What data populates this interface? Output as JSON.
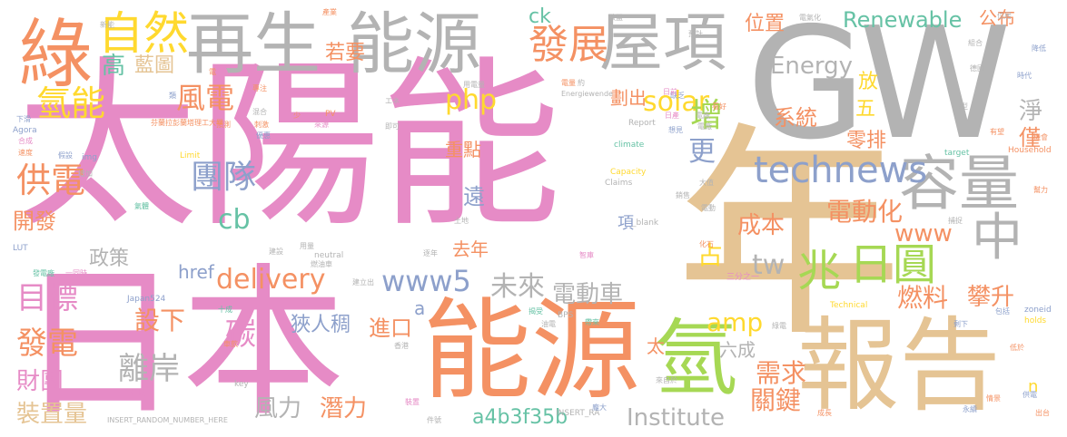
{
  "colors": {
    "pink": "#e68bc6",
    "orange": "#f49163",
    "tan": "#e5c494",
    "gray": "#b3b3b3",
    "green": "#a6d854",
    "teal": "#66c2a5",
    "blue": "#8da0cb",
    "yellow": "#ffd92f"
  },
  "words": [
    {
      "text": "太陽能",
      "color": "pink"
    },
    {
      "text": "GW",
      "color": "gray"
    },
    {
      "text": "年",
      "color": "tan"
    },
    {
      "text": "日本",
      "color": "pink"
    },
    {
      "text": "能源",
      "color": "orange"
    },
    {
      "text": "報告",
      "color": "tan"
    },
    {
      "text": "再生",
      "color": "gray"
    },
    {
      "text": "能源",
      "color": "gray"
    },
    {
      "text": "屋項",
      "color": "gray"
    },
    {
      "text": "綠",
      "color": "orange"
    },
    {
      "text": "氫",
      "color": "green"
    },
    {
      "text": "容量",
      "color": "gray"
    },
    {
      "text": "中",
      "color": "gray"
    },
    {
      "text": "日圓",
      "color": "green"
    },
    {
      "text": "兆",
      "color": "green"
    },
    {
      "text": "technews",
      "color": "blue"
    },
    {
      "text": "自然",
      "color": "yellow"
    },
    {
      "text": "發展",
      "color": "orange"
    },
    {
      "text": "Renewable",
      "color": "teal"
    },
    {
      "text": "公布",
      "color": "orange"
    },
    {
      "text": "氫能",
      "color": "yellow"
    },
    {
      "text": "風電",
      "color": "orange"
    },
    {
      "text": "Energy",
      "color": "gray"
    },
    {
      "text": "php",
      "color": "yellow"
    },
    {
      "text": "solar",
      "color": "yellow"
    },
    {
      "text": "增",
      "color": "green"
    },
    {
      "text": "更",
      "color": "blue"
    },
    {
      "text": "供電",
      "color": "orange"
    },
    {
      "text": "團隊",
      "color": "blue"
    },
    {
      "text": "開發",
      "color": "orange"
    },
    {
      "text": "cb",
      "color": "teal"
    },
    {
      "text": "delivery",
      "color": "orange"
    },
    {
      "text": "www5",
      "color": "blue"
    },
    {
      "text": "未來",
      "color": "gray"
    },
    {
      "text": "電動車",
      "color": "gray"
    },
    {
      "text": "www",
      "color": "orange"
    },
    {
      "text": "tw",
      "color": "gray"
    },
    {
      "text": "占",
      "color": "yellow"
    },
    {
      "text": "目標",
      "color": "pink"
    },
    {
      "text": "設下",
      "color": "orange"
    },
    {
      "text": "發電",
      "color": "orange"
    },
    {
      "text": "財團",
      "color": "pink"
    },
    {
      "text": "裝置量",
      "color": "tan"
    },
    {
      "text": "碳",
      "color": "pink"
    },
    {
      "text": "離岸",
      "color": "gray"
    },
    {
      "text": "狹人稠",
      "color": "blue"
    },
    {
      "text": "進口",
      "color": "orange"
    },
    {
      "text": "amp",
      "color": "yellow"
    },
    {
      "text": "Institute",
      "color": "gray"
    },
    {
      "text": "風力",
      "color": "gray"
    },
    {
      "text": "潛力",
      "color": "orange"
    },
    {
      "text": "a4b3f35b",
      "color": "teal"
    },
    {
      "text": "關鍵",
      "color": "orange"
    },
    {
      "text": "需求",
      "color": "orange"
    },
    {
      "text": "燃料",
      "color": "orange"
    },
    {
      "text": "攀升",
      "color": "orange"
    },
    {
      "text": "電動化",
      "color": "orange"
    },
    {
      "text": "成本",
      "color": "orange"
    },
    {
      "text": "系統",
      "color": "orange"
    },
    {
      "text": "零排",
      "color": "orange"
    },
    {
      "text": "淨",
      "color": "gray"
    },
    {
      "text": "僅",
      "color": "orange"
    },
    {
      "text": "五",
      "color": "yellow"
    },
    {
      "text": "放",
      "color": "yellow"
    },
    {
      "text": "位置",
      "color": "orange"
    },
    {
      "text": "若要",
      "color": "orange"
    },
    {
      "text": "ck",
      "color": "teal"
    },
    {
      "text": "高",
      "color": "teal"
    },
    {
      "text": "藍圖",
      "color": "tan"
    },
    {
      "text": "劃出",
      "color": "orange"
    },
    {
      "text": "重點",
      "color": "orange"
    },
    {
      "text": "遠",
      "color": "blue"
    },
    {
      "text": "政策",
      "color": "gray"
    },
    {
      "text": "去年",
      "color": "orange"
    },
    {
      "text": "href",
      "color": "blue"
    },
    {
      "text": "太",
      "color": "orange"
    },
    {
      "text": "項",
      "color": "blue"
    },
    {
      "text": "六成",
      "color": "gray"
    },
    {
      "text": "n",
      "color": "yellow"
    },
    {
      "text": "a",
      "color": "blue"
    },
    {
      "text": "Japan524",
      "color": "blue"
    },
    {
      "text": "INSERT_RANDOM_NUMBER_HERE",
      "color": "gray"
    },
    {
      "text": "Agora",
      "color": "blue"
    },
    {
      "text": "LUT",
      "color": "blue"
    },
    {
      "text": "芬蘭拉彭蘭塔理工大學",
      "color": "orange"
    },
    {
      "text": "Energiewende",
      "color": "gray"
    },
    {
      "text": "Report",
      "color": "gray"
    },
    {
      "text": "climate",
      "color": "teal"
    },
    {
      "text": "Household",
      "color": "orange"
    },
    {
      "text": "target",
      "color": "teal"
    },
    {
      "text": "Capacity",
      "color": "yellow"
    },
    {
      "text": "Claims",
      "color": "gray"
    },
    {
      "text": "neutral",
      "color": "gray"
    },
    {
      "text": "Technical",
      "color": "yellow"
    },
    {
      "text": "zoneid",
      "color": "blue"
    },
    {
      "text": "holds",
      "color": "yellow"
    },
    {
      "text": "BPS",
      "color": "gray"
    },
    {
      "text": "key",
      "color": "gray"
    },
    {
      "text": "img",
      "color": "blue"
    },
    {
      "text": "Limit",
      "color": "yellow"
    },
    {
      "text": "PV",
      "color": "orange"
    },
    {
      "text": "_blank",
      "color": "gray"
    },
    {
      "text": "INSERT_RA",
      "color": "gray"
    },
    {
      "text": "三分之一",
      "color": "pink"
    },
    {
      "text": "產業",
      "color": "orange"
    },
    {
      "text": "位居",
      "color": "gray"
    },
    {
      "text": "降低",
      "color": "blue"
    },
    {
      "text": "時代",
      "color": "blue"
    },
    {
      "text": "德國",
      "color": "gray"
    },
    {
      "text": "轉型",
      "color": "gray"
    },
    {
      "text": "有望",
      "color": "orange"
    },
    {
      "text": "機會",
      "color": "orange"
    },
    {
      "text": "電氣化",
      "color": "gray"
    },
    {
      "text": "組合",
      "color": "gray"
    },
    {
      "text": "預計",
      "color": "gray"
    },
    {
      "text": "缺乏",
      "color": "blue"
    },
    {
      "text": "看好",
      "color": "orange"
    },
    {
      "text": "日產",
      "color": "pink"
    },
    {
      "text": "電廠",
      "color": "gray"
    },
    {
      "text": "想見",
      "color": "blue"
    },
    {
      "text": "合成",
      "color": "pink"
    },
    {
      "text": "速度",
      "color": "orange"
    },
    {
      "text": "下滑",
      "color": "blue"
    },
    {
      "text": "假設",
      "color": "blue"
    },
    {
      "text": "增加",
      "color": "gray"
    },
    {
      "text": "氣體",
      "color": "teal"
    },
    {
      "text": "新能",
      "color": "gray"
    },
    {
      "text": "發電廠",
      "color": "teal"
    },
    {
      "text": "一同時",
      "color": "pink"
    },
    {
      "text": "建設",
      "color": "gray"
    },
    {
      "text": "用量",
      "color": "gray"
    },
    {
      "text": "燃油車",
      "color": "gray"
    },
    {
      "text": "建立出",
      "color": "gray"
    },
    {
      "text": "來源",
      "color": "pink"
    },
    {
      "text": "刺激",
      "color": "orange"
    },
    {
      "text": "預測",
      "color": "orange"
    },
    {
      "text": "混合",
      "color": "gray"
    },
    {
      "text": "優惠",
      "color": "blue"
    },
    {
      "text": "專注",
      "color": "orange"
    },
    {
      "text": "類",
      "color": "blue"
    },
    {
      "text": "電",
      "color": "orange"
    },
    {
      "text": "土地",
      "color": "gray"
    },
    {
      "text": "用電量",
      "color": "gray"
    },
    {
      "text": "化石",
      "color": "orange"
    },
    {
      "text": "大值",
      "color": "gray"
    },
    {
      "text": "銷售",
      "color": "gray"
    },
    {
      "text": "捕捉",
      "color": "gray"
    },
    {
      "text": "幫力",
      "color": "orange"
    },
    {
      "text": "包括",
      "color": "blue"
    },
    {
      "text": "剩下",
      "color": "blue"
    },
    {
      "text": "低於",
      "color": "orange"
    },
    {
      "text": "供電",
      "color": "blue"
    },
    {
      "text": "出台",
      "color": "orange"
    },
    {
      "text": "永續",
      "color": "blue"
    },
    {
      "text": "情景",
      "color": "orange"
    },
    {
      "text": "成長",
      "color": "orange"
    },
    {
      "text": "龐大",
      "color": "blue"
    },
    {
      "text": "件號",
      "color": "gray"
    },
    {
      "text": "裝置",
      "color": "pink"
    },
    {
      "text": "香港",
      "color": "gray"
    },
    {
      "text": "揭受",
      "color": "teal"
    },
    {
      "text": "油電",
      "color": "gray"
    },
    {
      "text": "綠電",
      "color": "gray"
    },
    {
      "text": "帶來",
      "color": "teal"
    },
    {
      "text": "智庫",
      "color": "pink"
    },
    {
      "text": "來自於",
      "color": "gray"
    },
    {
      "text": "逐年",
      "color": "gray"
    },
    {
      "text": "車款",
      "color": "orange"
    },
    {
      "text": "建模",
      "color": "pink"
    },
    {
      "text": "歐盟",
      "color": "gray"
    },
    {
      "text": "約",
      "color": "gray"
    },
    {
      "text": "電量",
      "color": "orange"
    },
    {
      "text": "エネ",
      "color": "gray"
    },
    {
      "text": "即可",
      "color": "gray"
    },
    {
      "text": "少",
      "color": "orange"
    },
    {
      "text": "日前",
      "color": "pink"
    },
    {
      "text": "電廠",
      "color": "gray"
    },
    {
      "text": "電動",
      "color": "gray"
    },
    {
      "text": "十成",
      "color": "teal"
    }
  ]
}
